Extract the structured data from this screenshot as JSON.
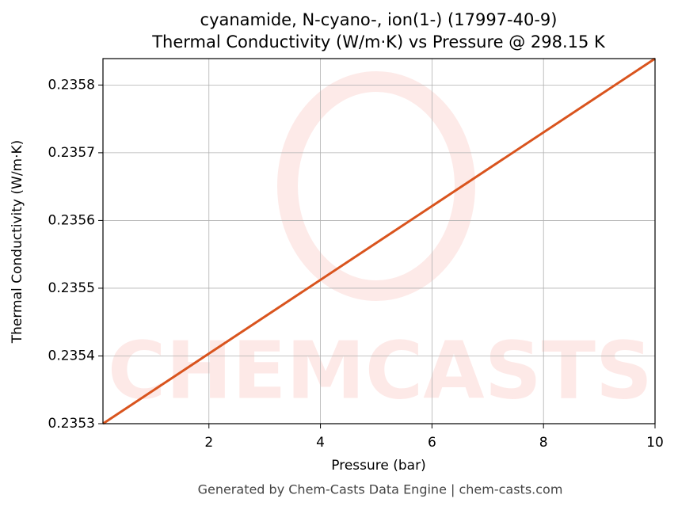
{
  "chart_data": {
    "type": "line",
    "title": "cyanamide, N-cyano-, ion(1-) (17997-40-9)",
    "subtitle": "Thermal Conductivity (W/m·K) vs Pressure @ 298.15 K",
    "x_label": "Pressure (bar)",
    "y_label": "Thermal Conductivity (W/m·K)",
    "footer": "Generated by Chem-Casts Data Engine | chem-casts.com",
    "x": [
      0.1,
      10
    ],
    "series": [
      {
        "name": "Thermal Conductivity",
        "color": "#d9541e",
        "values": [
          0.2353,
          0.235839
        ]
      }
    ],
    "xlim": [
      0.1,
      10
    ],
    "xticks": [
      2,
      4,
      6,
      8,
      10
    ],
    "ylim": [
      0.2353,
      0.235839
    ],
    "yticks": [
      0.2353,
      0.2354,
      0.2355,
      0.2356,
      0.2357,
      0.2358
    ],
    "grid": true
  }
}
